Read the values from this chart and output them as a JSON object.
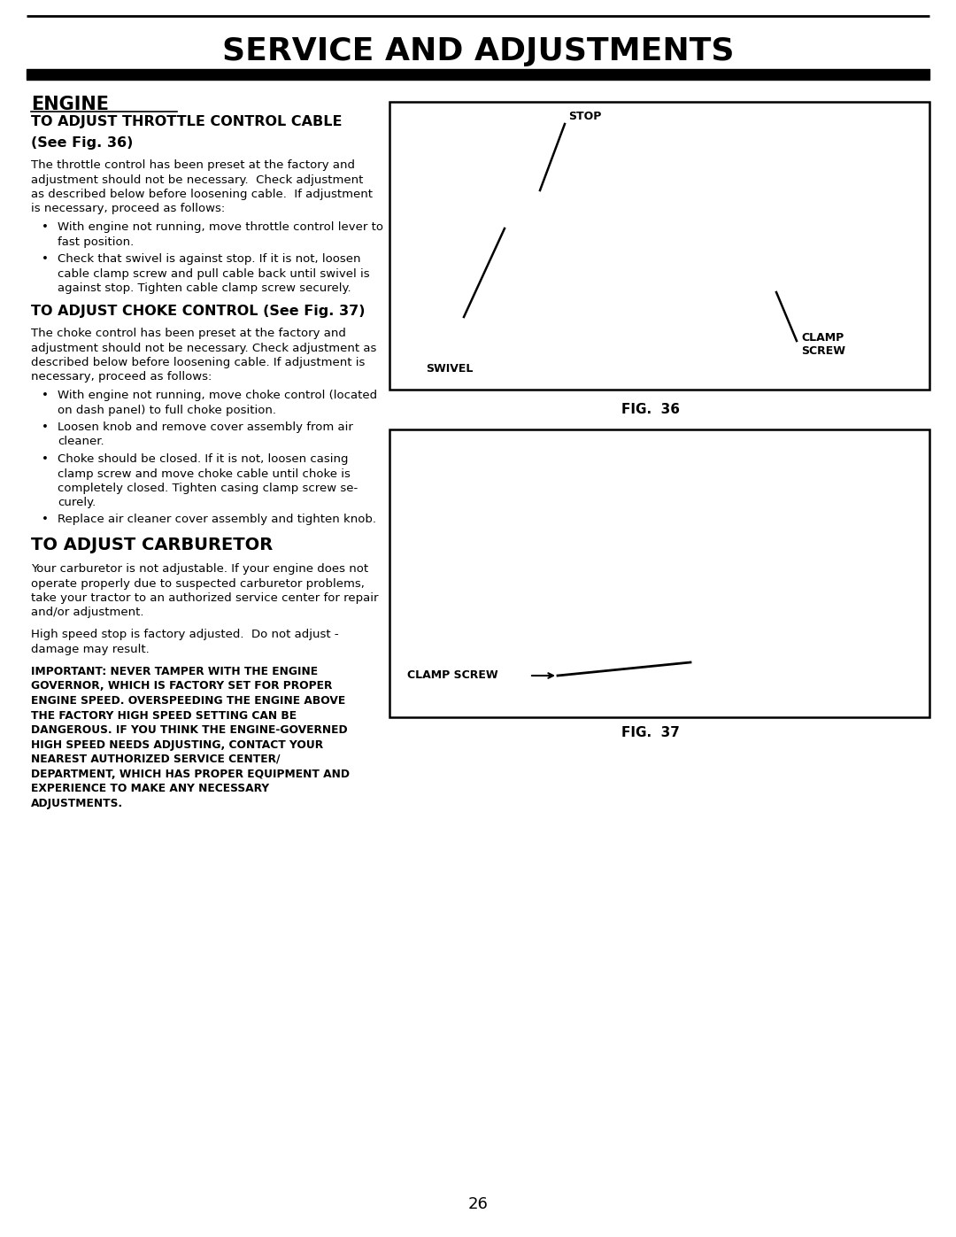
{
  "page_title": "SERVICE AND ADJUSTMENTS",
  "page_number": "26",
  "bg_color": "#ffffff",
  "section_heading": "ENGINE",
  "throttle_title1": "TO ADJUST THROTTLE CONTROL CABLE",
  "throttle_title2": "(See Fig. 36)",
  "throttle_body": "The throttle control has been preset at the factory and adjustment should not be necessary.  Check adjustment as described below before loosening cable.  If adjustment is necessary, proceed as follows:",
  "throttle_bullets": [
    "With engine not running, move throttle control lever to fast position.",
    "Check that swivel is against stop. If it is not, loosen cable clamp screw and pull cable back until swivel is against stop. Tighten cable clamp screw securely."
  ],
  "choke_title": "TO ADJUST CHOKE CONTROL (See Fig. 37)",
  "choke_body": "The choke control has been preset at the factory and adjustment should not be necessary. Check adjustment as described below before loosening cable. If adjustment is necessary, proceed as follows:",
  "choke_bullets": [
    "With engine not running, move choke control (located on dash panel) to full choke position.",
    "Loosen knob and remove cover assembly from air cleaner.",
    "Choke should be closed. If it is not, loosen casing clamp screw and move choke cable until choke is completely closed. Tighten casing clamp screw se-curely.",
    "Replace air cleaner cover assembly and tighten knob."
  ],
  "carb_title": "TO ADJUST CARBURETOR",
  "carb_body1": "Your carburetor is not adjustable. If your engine does not operate properly due to suspected carburetor problems, take your tractor to an authorized service center for repair and/or adjustment.",
  "carb_body2": "High speed stop is factory adjusted.  Do not adjust - damage may result.",
  "carb_important": "IMPORTANT: NEVER TAMPER WITH THE ENGINE GOVERNOR, WHICH IS FACTORY SET FOR PROPER ENGINE SPEED. OVERSPEEDING THE ENGINE ABOVE THE FACTORY HIGH SPEED SETTING CAN BE DANGEROUS. IF YOU THINK THE ENGINE-GOVERNED HIGH SPEED NEEDS ADJUSTING, CONTACT YOUR NEAREST AUTHORIZED SERVICE CENTER/DEPARTMENT, WHICH HAS PROPER EQUIPMENT AND EXPERIENCE TO MAKE ANY NECESSARY ADJUSTMENTS.",
  "fig36_caption": "FIG.  36",
  "fig37_caption": "FIG.  37"
}
